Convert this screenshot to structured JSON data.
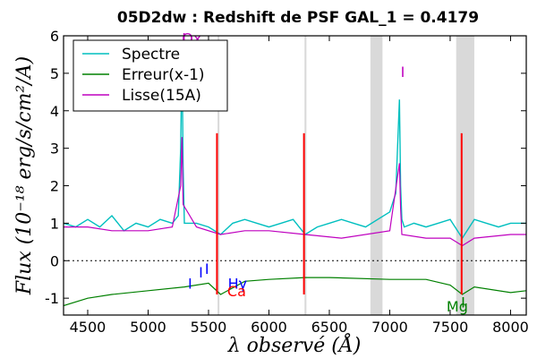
{
  "chart_data": {
    "type": "line",
    "title": "05D2dw : Redshift de PSF GAL_1 = 0.4179",
    "xlabel": "λ observé (Å)",
    "ylabel": "Flux (10⁻¹⁸ erg/s/cm²/A)",
    "xlim": [
      4300,
      8130
    ],
    "ylim": [
      -1.45,
      6.0
    ],
    "x_ticks": [
      "4500",
      "5000",
      "5500",
      "6000",
      "6500",
      "7000",
      "7500",
      "8000"
    ],
    "x_tick_values": [
      4500,
      5000,
      5500,
      6000,
      6500,
      7000,
      7500,
      8000
    ],
    "y_ticks": [
      "-1",
      "0",
      "1",
      "2",
      "3",
      "4",
      "5",
      "6"
    ],
    "y_tick_values": [
      -1,
      0,
      1,
      2,
      3,
      4,
      5,
      6
    ],
    "grid": false,
    "legend_placement": "top-left",
    "series": [
      {
        "name": "Spectre",
        "color": "#00bfbf",
        "x": [
          4300,
          4400,
          4500,
          4600,
          4700,
          4800,
          4900,
          5000,
          5100,
          5200,
          5250,
          5270,
          5280,
          5290,
          5300,
          5400,
          5500,
          5600,
          5700,
          5800,
          5900,
          6000,
          6100,
          6200,
          6300,
          6400,
          6500,
          6600,
          6700,
          6800,
          6900,
          7000,
          7050,
          7080,
          7090,
          7100,
          7120,
          7200,
          7300,
          7400,
          7500,
          7600,
          7700,
          7800,
          7900,
          8000,
          8130
        ],
        "y": [
          1.0,
          0.9,
          1.1,
          0.9,
          1.2,
          0.8,
          1.0,
          0.9,
          1.1,
          1.0,
          1.2,
          3.0,
          5.6,
          2.5,
          1.0,
          1.0,
          0.9,
          0.7,
          1.0,
          1.1,
          1.0,
          0.9,
          1.0,
          1.1,
          0.7,
          0.9,
          1.0,
          1.1,
          1.0,
          0.9,
          1.1,
          1.3,
          1.8,
          4.3,
          2.0,
          1.1,
          0.9,
          1.0,
          0.9,
          1.0,
          1.1,
          0.6,
          1.1,
          1.0,
          0.9,
          1.0,
          1.0
        ]
      },
      {
        "name": "Erreur(x-1)",
        "color": "#008000",
        "x": [
          4300,
          4500,
          4700,
          5000,
          5300,
          5500,
          5600,
          5800,
          6000,
          6300,
          6500,
          7000,
          7300,
          7500,
          7600,
          7700,
          8000,
          8130
        ],
        "y": [
          -1.2,
          -1.0,
          -0.9,
          -0.8,
          -0.7,
          -0.6,
          -0.9,
          -0.55,
          -0.5,
          -0.45,
          -0.45,
          -0.5,
          -0.5,
          -0.65,
          -0.9,
          -0.7,
          -0.85,
          -0.8
        ]
      },
      {
        "name": "Lisse(15A)",
        "color": "#bf00bf",
        "x": [
          4300,
          4500,
          4700,
          5000,
          5200,
          5270,
          5280,
          5290,
          5400,
          5600,
          5800,
          6000,
          6300,
          6600,
          7000,
          7080,
          7090,
          7100,
          7300,
          7500,
          7600,
          7700,
          8000,
          8130
        ],
        "y": [
          0.9,
          0.9,
          0.8,
          0.8,
          0.9,
          2.0,
          3.3,
          1.5,
          0.9,
          0.7,
          0.8,
          0.8,
          0.7,
          0.6,
          0.8,
          2.6,
          1.4,
          0.7,
          0.6,
          0.6,
          0.4,
          0.6,
          0.7,
          0.7
        ]
      }
    ],
    "zero_line": 0,
    "shaded_bands": [
      [
        5575,
        5590
      ],
      [
        6295,
        6310
      ],
      [
        6840,
        6940
      ],
      [
        7550,
        7700
      ]
    ],
    "red_spikes": [
      5570,
      6290,
      7595
    ],
    "annotations": [
      {
        "text": "Ox",
        "x": 5280,
        "y": 5.8,
        "color": "#bf00bf"
      },
      {
        "text": "I",
        "x": 5280,
        "y": 5.8,
        "color": "#bf00bf"
      },
      {
        "text": "I",
        "x": 7090,
        "y": 4.9,
        "color": "#bf00bf"
      },
      {
        "text": "I",
        "x": 5330,
        "y": -0.75,
        "color": "#0000ff"
      },
      {
        "text": "I",
        "x": 5420,
        "y": -0.45,
        "color": "#0000ff"
      },
      {
        "text": "I",
        "x": 5470,
        "y": -0.35,
        "color": "#0000ff"
      },
      {
        "text": "Hγ",
        "x": 5660,
        "y": -0.75,
        "color": "#0000ff"
      },
      {
        "text": "Ca",
        "x": 5655,
        "y": -0.95,
        "color": "#ff0000"
      },
      {
        "text": "I",
        "x": 7590,
        "y": -1.25,
        "color": "#008000"
      },
      {
        "text": "Mg",
        "x": 7470,
        "y": -1.35,
        "color": "#008000"
      }
    ]
  }
}
